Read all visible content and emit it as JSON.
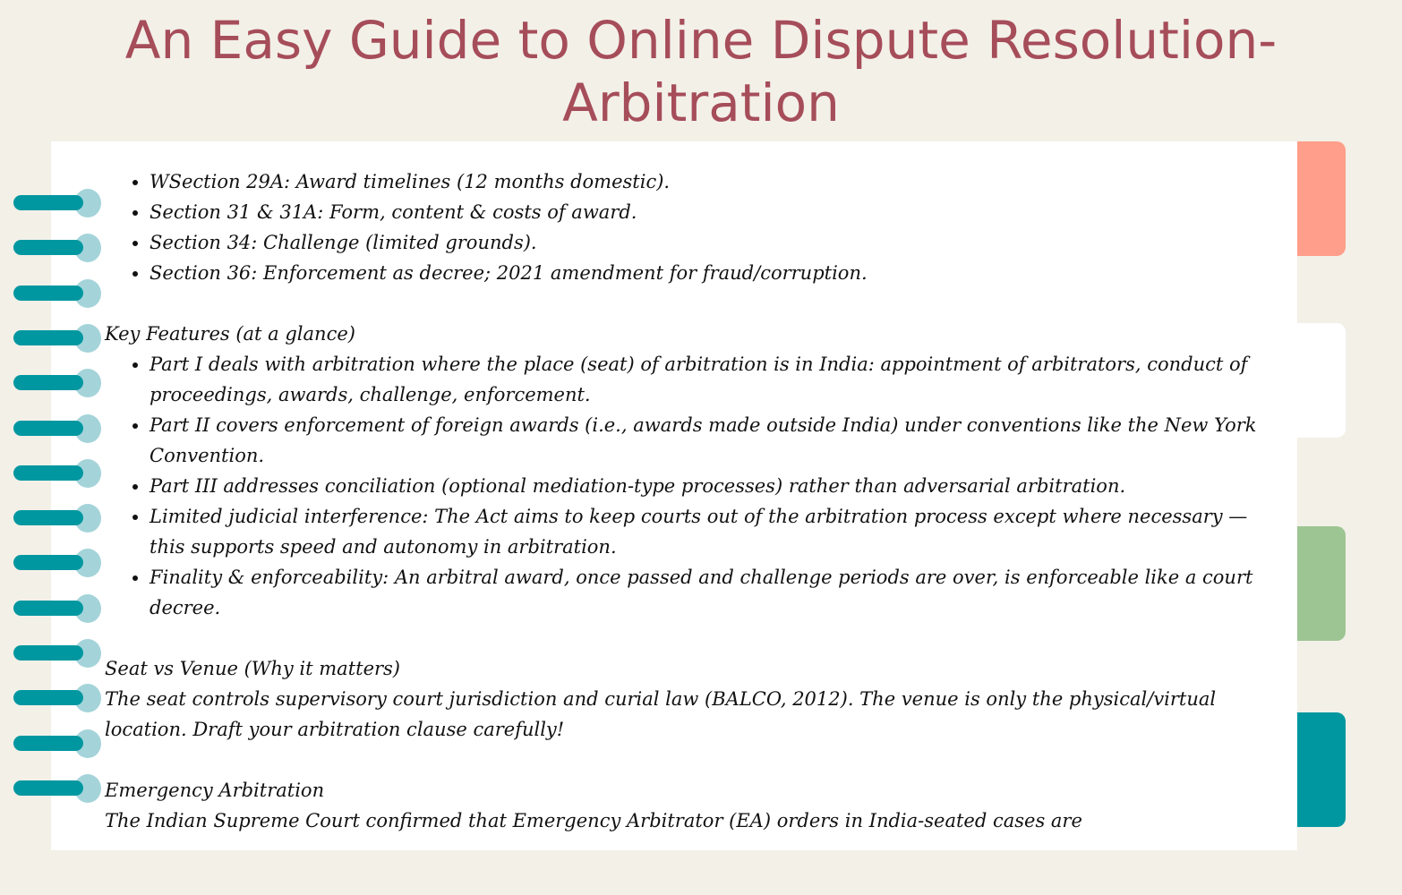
{
  "title": "An Easy Guide to Online Dispute Resolution- Arbitration",
  "sections_list": [
    "WSection 29A: Award timelines (12 months domestic).",
    "Section 31 & 31A: Form, content & costs of award.",
    "Section 34: Challenge (limited grounds).",
    "Section 36: Enforcement as decree; 2021 amendment for fraud/corruption."
  ],
  "key_features": {
    "heading": "Key Features (at a glance)",
    "items": [
      "Part I deals with arbitration where the place (seat) of arbitration is in India: appointment of arbitrators, conduct of proceedings, awards, challenge, enforcement.",
      "Part II covers enforcement of foreign awards (i.e., awards made outside India) under conventions like the New York Convention.",
      "Part III addresses conciliation (optional mediation-type processes) rather than adversarial arbitration.",
      "Limited judicial interference: The Act aims to keep courts out of the arbitration process except where necessary — this supports speed and autonomy in arbitration.",
      "Finality & enforceability: An arbitral award, once passed and challenge periods are over, is enforceable like a court decree."
    ]
  },
  "seat_venue": {
    "heading": "Seat vs Venue (Why it matters)",
    "text": "The seat controls supervisory court jurisdiction and curial law (BALCO, 2012). The venue is only the physical/virtual location. Draft your arbitration clause carefully!"
  },
  "emergency": {
    "heading": "Emergency Arbitration",
    "text": "The Indian Supreme Court confirmed that Emergency Arbitrator (EA) orders in India-seated cases are"
  },
  "colors": {
    "title": "#a64d5a",
    "tab_salmon": "#ff9e8a",
    "tab_white": "#ffffff",
    "tab_green": "#9dc593",
    "tab_teal": "#0097a0",
    "ring": "#0097a0"
  }
}
